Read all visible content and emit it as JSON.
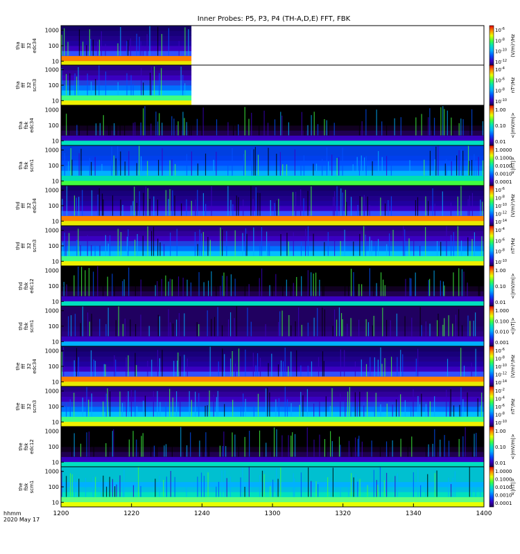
{
  "title": "Inner Probes: P5, P3, P4 (TH-A,D,E) FFT, FBK",
  "time_unit_label": "hhmm",
  "date_label": "2020 May 17",
  "chart_data": {
    "type": "heatmap",
    "x_tick_labels": [
      "1200",
      "1220",
      "1240",
      "1300",
      "1320",
      "1340",
      "1400"
    ],
    "xlim": [
      "1200",
      "1400"
    ],
    "y_scale": "log",
    "ylim": [
      5,
      2000
    ],
    "y_tick_labels": [
      "10",
      "100",
      "1000"
    ],
    "panels": [
      {
        "ylabel": [
          "tha",
          "fff",
          "32",
          "edc34"
        ],
        "data_end": "1237",
        "cb_unit": "(V/m)²/Hz",
        "cb_ticks": [
          {
            "m": "10",
            "e": "-6"
          },
          {
            "m": "10",
            "e": "-8"
          },
          {
            "m": "10",
            "e": "-10"
          },
          {
            "m": "10",
            "e": "-12"
          }
        ]
      },
      {
        "ylabel": [
          "tha",
          "fff",
          "32",
          "scm3"
        ],
        "data_end": "1237",
        "cb_unit": "nT²/Hz",
        "cb_ticks": [
          {
            "m": "10",
            "e": "-4"
          },
          {
            "m": "10",
            "e": "-6"
          },
          {
            "m": "10",
            "e": "-8"
          },
          {
            "m": "10",
            "e": "-10"
          }
        ]
      },
      {
        "ylabel": [
          "tha",
          "fbk",
          "edc34"
        ],
        "data_end": "1400",
        "cb_unit": "<|mV/m|>",
        "cb_ticks": [
          {
            "m": "1.00"
          },
          {
            "m": "0.10"
          },
          {
            "m": "0.01"
          }
        ]
      },
      {
        "ylabel": [
          "tha",
          "fbk",
          "scm1"
        ],
        "data_end": "1400",
        "cb_unit": "<|nT|>",
        "cb_ticks": [
          {
            "m": "1.0000"
          },
          {
            "m": "0.1000"
          },
          {
            "m": "0.0100"
          },
          {
            "m": "0.0010"
          },
          {
            "m": "0.0001"
          }
        ]
      },
      {
        "ylabel": [
          "thd",
          "fff",
          "32",
          "edc34"
        ],
        "data_end": "1400",
        "cb_unit": "(V/m)²/Hz",
        "cb_ticks": [
          {
            "m": "10",
            "e": "-6"
          },
          {
            "m": "10",
            "e": "-8"
          },
          {
            "m": "10",
            "e": "-10"
          },
          {
            "m": "10",
            "e": "-12"
          },
          {
            "m": "10",
            "e": "-14"
          }
        ]
      },
      {
        "ylabel": [
          "thd",
          "fff",
          "32",
          "scm3"
        ],
        "data_end": "1400",
        "cb_unit": "nT²/Hz",
        "cb_ticks": [
          {
            "m": "10",
            "e": "-4"
          },
          {
            "m": "10",
            "e": "-6"
          },
          {
            "m": "10",
            "e": "-8"
          },
          {
            "m": "10",
            "e": "-10"
          }
        ]
      },
      {
        "ylabel": [
          "thd",
          "fbk",
          "edc12"
        ],
        "data_end": "1400",
        "cb_unit": "<|mV/m|>",
        "cb_ticks": [
          {
            "m": "1.00"
          },
          {
            "m": "0.10"
          },
          {
            "m": "0.01"
          }
        ]
      },
      {
        "ylabel": [
          "thd",
          "fbk",
          "scm1"
        ],
        "data_end": "1400",
        "cb_unit": "<|nT|>",
        "cb_ticks": [
          {
            "m": "1.000"
          },
          {
            "m": "0.100"
          },
          {
            "m": "0.010"
          },
          {
            "m": "0.001"
          }
        ]
      },
      {
        "ylabel": [
          "the",
          "fff",
          "32",
          "edc34"
        ],
        "data_end": "1400",
        "cb_unit": "(V/m)²/Hz",
        "cb_ticks": [
          {
            "m": "10",
            "e": "-6"
          },
          {
            "m": "10",
            "e": "-8"
          },
          {
            "m": "10",
            "e": "-10"
          },
          {
            "m": "10",
            "e": "-12"
          },
          {
            "m": "10",
            "e": "-14"
          }
        ]
      },
      {
        "ylabel": [
          "the",
          "fff",
          "32",
          "scm3"
        ],
        "data_end": "1400",
        "cb_unit": "nT²/Hz",
        "cb_ticks": [
          {
            "m": "10",
            "e": "-2"
          },
          {
            "m": "10",
            "e": "-4"
          },
          {
            "m": "10",
            "e": "-6"
          },
          {
            "m": "10",
            "e": "-8"
          },
          {
            "m": "10",
            "e": "-10"
          }
        ]
      },
      {
        "ylabel": [
          "the",
          "fbk",
          "edc12"
        ],
        "data_end": "1400",
        "cb_unit": "<|mV/m|>",
        "cb_ticks": [
          {
            "m": "1.00"
          },
          {
            "m": "0.10"
          },
          {
            "m": "0.01"
          }
        ]
      },
      {
        "ylabel": [
          "the",
          "fbk",
          "scm1"
        ],
        "data_end": "1400",
        "cb_unit": "<|nT|>",
        "cb_ticks": [
          {
            "m": "1.0000"
          },
          {
            "m": "0.1000"
          },
          {
            "m": "0.0100"
          },
          {
            "m": "0.0010"
          },
          {
            "m": "0.0001"
          }
        ]
      }
    ]
  }
}
